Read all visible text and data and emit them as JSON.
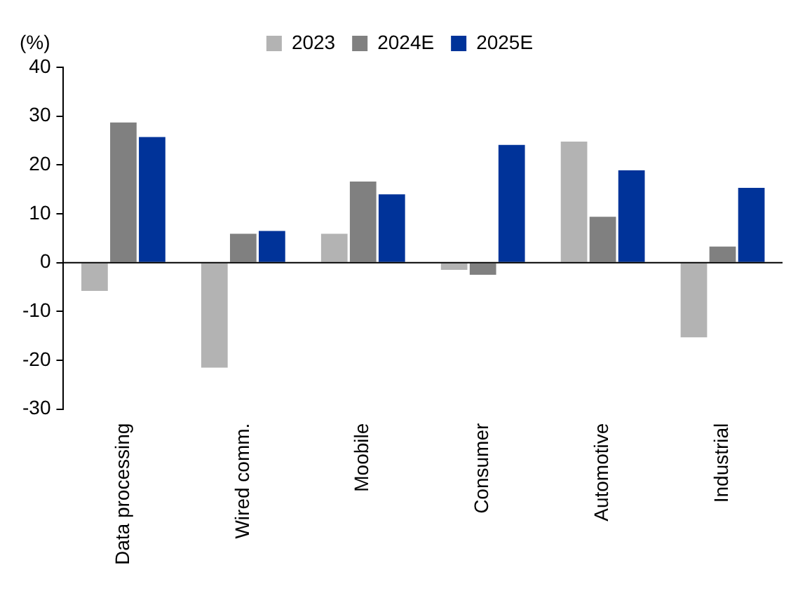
{
  "chart_data": {
    "type": "bar",
    "ylabel": "(%)",
    "categories": [
      "Data processing",
      "Wired comm.",
      "Moobile",
      "Consumer",
      "Automotive",
      "Industrial"
    ],
    "series": [
      {
        "name": "2023",
        "color": "#b3b3b3",
        "values": [
          -5.8,
          -21.5,
          5.9,
          -1.5,
          24.8,
          -15.3
        ]
      },
      {
        "name": "2024E",
        "color": "#808080",
        "values": [
          28.7,
          5.9,
          16.6,
          -2.5,
          9.4,
          3.3
        ]
      },
      {
        "name": "2025E",
        "color": "#003399",
        "values": [
          25.7,
          6.5,
          14,
          24.1,
          18.9,
          15.3
        ]
      }
    ],
    "ylim": [
      -30,
      40
    ],
    "yticks": [
      -30,
      -20,
      -10,
      0,
      10,
      20,
      30,
      40
    ],
    "grid": false,
    "legend": "top",
    "ref_lines": [
      {
        "axis": "y",
        "value": 0,
        "color": "#000000"
      }
    ]
  }
}
